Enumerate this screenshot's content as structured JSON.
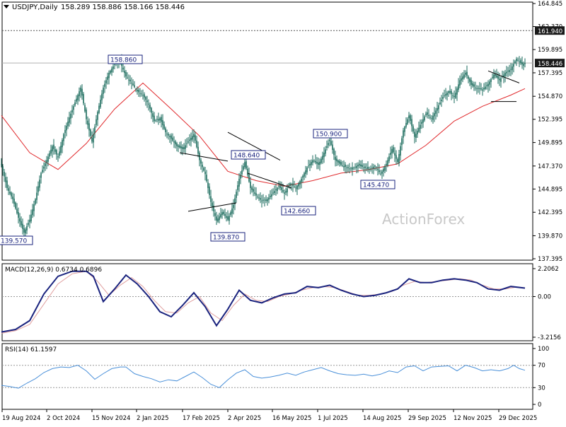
{
  "header": {
    "symbol": "USDJPY,Daily",
    "ohlc": "158.289 158.886 158.166 158.446"
  },
  "watermark": "ActionForex",
  "colors": {
    "candle": "#1a6b5c",
    "sma": "#e0282b",
    "macd": "#1a237e",
    "signal": "#e0a0a0",
    "rsi": "#4a90d9",
    "trendline": "#000000",
    "label_border": "#1a237e",
    "price_box": "#1a1a1a"
  },
  "chart_data": [
    {
      "type": "line",
      "panel": "price",
      "subtype": "candlestick",
      "symbol": "USDJPY",
      "timeframe": "Daily",
      "ylim": [
        137.395,
        164.845
      ],
      "y_ticks": [
        "164.845",
        "162.370",
        "159.895",
        "157.395",
        "154.870",
        "152.395",
        "149.895",
        "147.370",
        "144.895",
        "142.395",
        "139.870",
        "137.395"
      ],
      "x_ticks": [
        "19 Aug 2024",
        "2 Oct 2024",
        "15 Nov 2024",
        "2 Jan 2025",
        "17 Feb 2025",
        "2 Apr 2025",
        "16 May 2025",
        "1 Jul 2025",
        "14 Aug 2025",
        "29 Sep 2025",
        "12 Nov 2025",
        "29 Dec 2025"
      ],
      "last_close": 158.446,
      "last_close_label": "158.446",
      "horizontal_level": 161.94,
      "horizontal_level_label": "161.940",
      "price_labels": [
        "139.570",
        "158.860",
        "139.870",
        "148.640",
        "142.660",
        "150.900",
        "145.470"
      ],
      "close_series": [
        [
          0,
          147.5
        ],
        [
          4,
          145.0
        ],
        [
          8,
          143.8
        ],
        [
          12,
          141.8
        ],
        [
          16,
          140.2
        ],
        [
          20,
          141.6
        ],
        [
          24,
          143.8
        ],
        [
          28,
          146.6
        ],
        [
          32,
          148.0
        ],
        [
          36,
          149.5
        ],
        [
          40,
          148.3
        ],
        [
          44,
          150.8
        ],
        [
          48,
          152.6
        ],
        [
          52,
          154.2
        ],
        [
          56,
          155.8
        ],
        [
          60,
          152.4
        ],
        [
          64,
          150.0
        ],
        [
          68,
          153.2
        ],
        [
          72,
          155.8
        ],
        [
          76,
          157.4
        ],
        [
          80,
          158.3
        ],
        [
          84,
          158.5
        ],
        [
          88,
          157.0
        ],
        [
          92,
          156.3
        ],
        [
          96,
          155.4
        ],
        [
          100,
          155.0
        ],
        [
          104,
          154.0
        ],
        [
          108,
          152.2
        ],
        [
          112,
          152.5
        ],
        [
          116,
          151.0
        ],
        [
          120,
          150.3
        ],
        [
          124,
          149.5
        ],
        [
          128,
          149.2
        ],
        [
          132,
          150.0
        ],
        [
          136,
          150.8
        ],
        [
          140,
          148.0
        ],
        [
          144,
          146.5
        ],
        [
          148,
          143.5
        ],
        [
          152,
          141.5
        ],
        [
          156,
          142.4
        ],
        [
          160,
          141.6
        ],
        [
          164,
          143.2
        ],
        [
          168,
          146.0
        ],
        [
          172,
          147.8
        ],
        [
          176,
          145.0
        ],
        [
          180,
          144.2
        ],
        [
          184,
          143.6
        ],
        [
          188,
          143.8
        ],
        [
          192,
          144.5
        ],
        [
          196,
          145.2
        ],
        [
          200,
          144.4
        ],
        [
          204,
          145.5
        ],
        [
          208,
          145.0
        ],
        [
          212,
          146.0
        ],
        [
          216,
          147.2
        ],
        [
          220,
          148.0
        ],
        [
          224,
          147.5
        ],
        [
          228,
          148.8
        ],
        [
          232,
          150.2
        ],
        [
          236,
          148.0
        ],
        [
          240,
          147.5
        ],
        [
          244,
          147.2
        ],
        [
          248,
          147.0
        ],
        [
          252,
          147.5
        ],
        [
          256,
          147.2
        ],
        [
          260,
          147.0
        ],
        [
          264,
          147.4
        ],
        [
          268,
          146.5
        ],
        [
          272,
          147.6
        ],
        [
          276,
          149.2
        ],
        [
          280,
          147.8
        ],
        [
          284,
          151.2
        ],
        [
          288,
          152.8
        ],
        [
          292,
          150.5
        ],
        [
          296,
          151.8
        ],
        [
          300,
          153.0
        ],
        [
          304,
          152.5
        ],
        [
          308,
          153.6
        ],
        [
          312,
          154.8
        ],
        [
          316,
          155.4
        ],
        [
          320,
          154.8
        ],
        [
          324,
          156.6
        ],
        [
          328,
          157.4
        ],
        [
          332,
          156.1
        ],
        [
          336,
          155.7
        ],
        [
          340,
          155.6
        ],
        [
          344,
          156.2
        ],
        [
          348,
          157.2
        ],
        [
          352,
          156.6
        ],
        [
          356,
          157.4
        ],
        [
          360,
          157.8
        ],
        [
          364,
          158.9
        ],
        [
          368,
          158.3
        ],
        [
          370,
          158.446
        ]
      ],
      "sma_series": [
        [
          0,
          152.8
        ],
        [
          20,
          148.8
        ],
        [
          40,
          147.0
        ],
        [
          60,
          149.8
        ],
        [
          80,
          153.5
        ],
        [
          100,
          156.3
        ],
        [
          120,
          153.5
        ],
        [
          140,
          150.6
        ],
        [
          160,
          146.8
        ],
        [
          180,
          145.8
        ],
        [
          200,
          145.2
        ],
        [
          220,
          145.8
        ],
        [
          240,
          146.6
        ],
        [
          260,
          147.0
        ],
        [
          280,
          147.6
        ],
        [
          300,
          149.6
        ],
        [
          320,
          152.2
        ],
        [
          340,
          153.8
        ],
        [
          360,
          155.0
        ],
        [
          370,
          155.7
        ]
      ],
      "trendlines": [
        [
          [
            126,
            148.8
          ],
          [
            160,
            147.9
          ]
        ],
        [
          [
            132,
            142.5
          ],
          [
            166,
            143.4
          ]
        ],
        [
          [
            160,
            151.0
          ],
          [
            197,
            148.0
          ]
        ],
        [
          [
            174,
            146.6
          ],
          [
            205,
            145.0
          ]
        ],
        [
          [
            344,
            157.6
          ],
          [
            366,
            156.3
          ]
        ],
        [
          [
            346,
            154.3
          ],
          [
            364,
            154.3
          ]
        ]
      ]
    },
    {
      "type": "line",
      "panel": "macd",
      "title": "MACD(12,26,9) 0.6734 0.6896",
      "ylim": [
        -3.2156,
        2.2062
      ],
      "y_ticks": [
        "2.2062",
        "0.00",
        "-3.2156"
      ],
      "series": [
        {
          "name": "MACD",
          "points": [
            [
              0,
              -2.8
            ],
            [
              10,
              -2.6
            ],
            [
              20,
              -1.9
            ],
            [
              30,
              0.2
            ],
            [
              40,
              1.6
            ],
            [
              50,
              2.0
            ],
            [
              60,
              2.0
            ],
            [
              65,
              1.6
            ],
            [
              72,
              -0.4
            ],
            [
              80,
              0.6
            ],
            [
              88,
              1.7
            ],
            [
              96,
              1.0
            ],
            [
              104,
              0.0
            ],
            [
              112,
              -1.2
            ],
            [
              120,
              -1.6
            ],
            [
              128,
              -0.7
            ],
            [
              136,
              0.3
            ],
            [
              144,
              -0.8
            ],
            [
              152,
              -2.3
            ],
            [
              160,
              -1.0
            ],
            [
              168,
              0.5
            ],
            [
              176,
              -0.3
            ],
            [
              184,
              -0.5
            ],
            [
              192,
              -0.1
            ],
            [
              200,
              0.2
            ],
            [
              208,
              0.3
            ],
            [
              216,
              0.8
            ],
            [
              224,
              0.7
            ],
            [
              232,
              0.9
            ],
            [
              240,
              0.5
            ],
            [
              248,
              0.2
            ],
            [
              256,
              0.0
            ],
            [
              264,
              0.1
            ],
            [
              272,
              0.3
            ],
            [
              280,
              0.6
            ],
            [
              288,
              1.4
            ],
            [
              296,
              1.1
            ],
            [
              304,
              1.1
            ],
            [
              312,
              1.3
            ],
            [
              320,
              1.4
            ],
            [
              328,
              1.3
            ],
            [
              336,
              1.1
            ],
            [
              344,
              0.6
            ],
            [
              352,
              0.5
            ],
            [
              360,
              0.8
            ],
            [
              370,
              0.67
            ]
          ]
        },
        {
          "name": "Signal",
          "points": [
            [
              0,
              -2.9
            ],
            [
              10,
              -2.7
            ],
            [
              20,
              -2.2
            ],
            [
              30,
              -0.6
            ],
            [
              40,
              1.0
            ],
            [
              50,
              1.8
            ],
            [
              60,
              2.0
            ],
            [
              68,
              1.2
            ],
            [
              76,
              0.1
            ],
            [
              84,
              0.9
            ],
            [
              92,
              1.5
            ],
            [
              100,
              0.8
            ],
            [
              108,
              -0.3
            ],
            [
              116,
              -1.2
            ],
            [
              124,
              -1.3
            ],
            [
              132,
              -0.5
            ],
            [
              140,
              0.0
            ],
            [
              148,
              -1.3
            ],
            [
              156,
              -1.9
            ],
            [
              164,
              -0.7
            ],
            [
              172,
              0.2
            ],
            [
              180,
              -0.3
            ],
            [
              188,
              -0.4
            ],
            [
              196,
              0.0
            ],
            [
              204,
              0.2
            ],
            [
              212,
              0.5
            ],
            [
              220,
              0.7
            ],
            [
              228,
              0.8
            ],
            [
              236,
              0.7
            ],
            [
              244,
              0.4
            ],
            [
              252,
              0.1
            ],
            [
              260,
              0.1
            ],
            [
              268,
              0.2
            ],
            [
              276,
              0.4
            ],
            [
              284,
              0.9
            ],
            [
              292,
              1.2
            ],
            [
              300,
              1.1
            ],
            [
              308,
              1.2
            ],
            [
              316,
              1.3
            ],
            [
              324,
              1.4
            ],
            [
              332,
              1.3
            ],
            [
              340,
              0.9
            ],
            [
              348,
              0.6
            ],
            [
              356,
              0.6
            ],
            [
              364,
              0.75
            ],
            [
              370,
              0.69
            ]
          ]
        }
      ]
    },
    {
      "type": "line",
      "panel": "rsi",
      "title": "RSI(14) 61.1597",
      "ylim": [
        0,
        100
      ],
      "y_ticks": [
        "100",
        "70",
        "30",
        "0"
      ],
      "levels": [
        70,
        30
      ],
      "series": [
        {
          "name": "RSI(14)",
          "points": [
            [
              0,
              34
            ],
            [
              6,
              32
            ],
            [
              12,
              29
            ],
            [
              18,
              38
            ],
            [
              24,
              46
            ],
            [
              30,
              57
            ],
            [
              36,
              64
            ],
            [
              42,
              67
            ],
            [
              48,
              66
            ],
            [
              54,
              70
            ],
            [
              60,
              60
            ],
            [
              66,
              45
            ],
            [
              72,
              55
            ],
            [
              78,
              64
            ],
            [
              84,
              67
            ],
            [
              88,
              67
            ],
            [
              94,
              55
            ],
            [
              100,
              50
            ],
            [
              106,
              46
            ],
            [
              112,
              40
            ],
            [
              118,
              44
            ],
            [
              124,
              42
            ],
            [
              130,
              50
            ],
            [
              136,
              58
            ],
            [
              142,
              48
            ],
            [
              148,
              36
            ],
            [
              154,
              30
            ],
            [
              160,
              44
            ],
            [
              166,
              56
            ],
            [
              172,
              62
            ],
            [
              178,
              50
            ],
            [
              184,
              47
            ],
            [
              190,
              49
            ],
            [
              196,
              52
            ],
            [
              202,
              56
            ],
            [
              208,
              52
            ],
            [
              214,
              58
            ],
            [
              220,
              62
            ],
            [
              226,
              66
            ],
            [
              232,
              60
            ],
            [
              238,
              55
            ],
            [
              244,
              53
            ],
            [
              250,
              52
            ],
            [
              256,
              54
            ],
            [
              262,
              51
            ],
            [
              268,
              54
            ],
            [
              274,
              60
            ],
            [
              280,
              57
            ],
            [
              286,
              67
            ],
            [
              292,
              69
            ],
            [
              298,
              60
            ],
            [
              304,
              67
            ],
            [
              310,
              68
            ],
            [
              316,
              69
            ],
            [
              322,
              60
            ],
            [
              328,
              70
            ],
            [
              334,
              66
            ],
            [
              340,
              60
            ],
            [
              346,
              62
            ],
            [
              352,
              60
            ],
            [
              358,
              64
            ],
            [
              362,
              70
            ],
            [
              366,
              64
            ],
            [
              370,
              61.16
            ]
          ]
        }
      ]
    }
  ]
}
